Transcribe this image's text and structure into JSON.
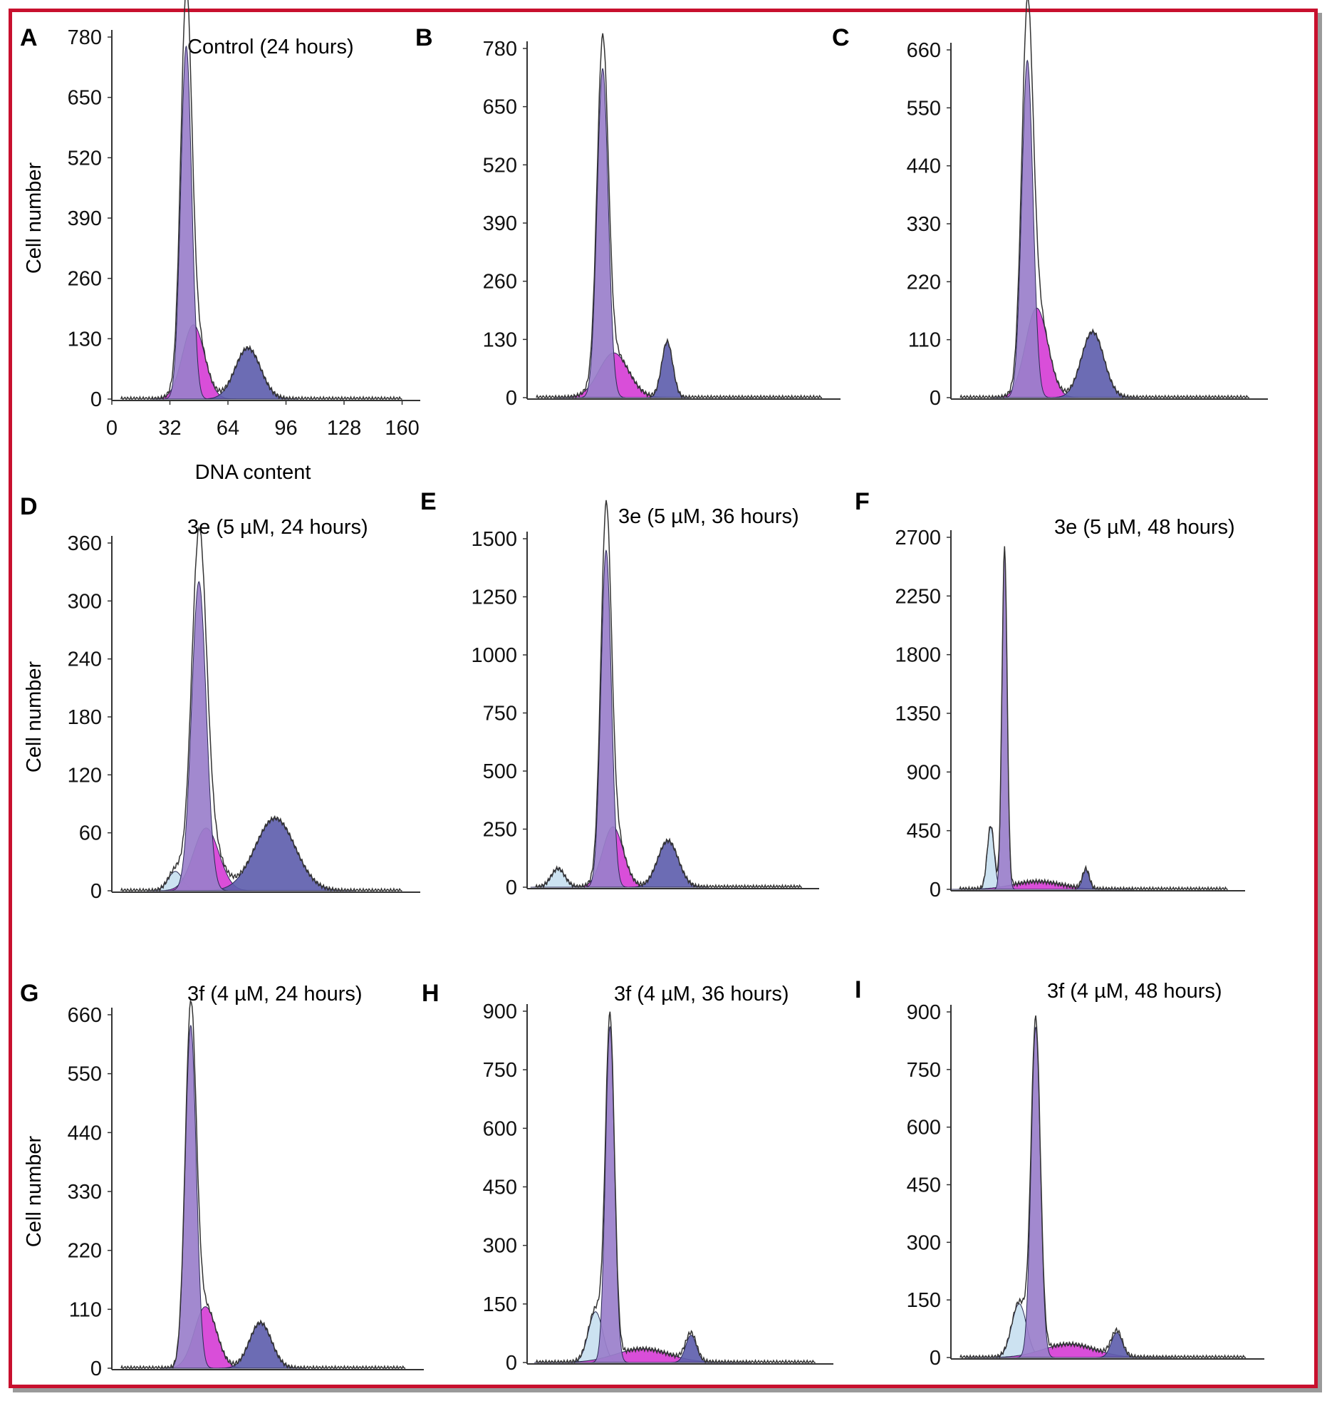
{
  "colors": {
    "border": "#c8102e",
    "sub_g1": "#c8dff0",
    "g0_g1": "#9a7fcb",
    "s_phase": "#d63fd6",
    "g2_m": "#5f5fae",
    "outline": "#333333"
  },
  "chart_data": [
    {
      "type": "area",
      "panel": "A",
      "title": "Control (24 hours)",
      "ylabel": "Cell number",
      "xlabel": "DNA content",
      "yticks": [
        0,
        130,
        260,
        390,
        520,
        650,
        780
      ],
      "ylim": [
        0,
        780
      ],
      "xticks": [
        "0",
        "32",
        "64",
        "96",
        "128",
        "160"
      ],
      "xlim": [
        0,
        170
      ],
      "peaks": {
        "sub_g1": [
          0,
          35,
          3
        ],
        "g1": [
          760,
          41,
          3
        ],
        "s": [
          160,
          45,
          6
        ],
        "g2": [
          110,
          75,
          7
        ]
      }
    },
    {
      "type": "area",
      "panel": "B",
      "title": "",
      "yticks": [
        0,
        130,
        260,
        390,
        520,
        650,
        780
      ],
      "ylim": [
        0,
        780
      ],
      "peaks": {
        "sub_g1": [
          0,
          30,
          3
        ],
        "g1": [
          735,
          41,
          3
        ],
        "s": [
          100,
          47,
          8
        ],
        "g2": [
          125,
          76,
          3
        ]
      }
    },
    {
      "type": "area",
      "panel": "C",
      "title": "",
      "yticks": [
        0,
        110,
        220,
        330,
        440,
        550,
        660
      ],
      "ylim": [
        0,
        660
      ],
      "peaks": {
        "sub_g1": [
          0,
          30,
          3
        ],
        "g1": [
          640,
          41,
          3
        ],
        "s": [
          170,
          46,
          6
        ],
        "g2": [
          125,
          76,
          6
        ]
      }
    },
    {
      "type": "area",
      "panel": "D",
      "title": "3e (5 µM, 24 hours)",
      "ylabel": "Cell number",
      "yticks": [
        0,
        60,
        120,
        180,
        240,
        300,
        360
      ],
      "ylim": [
        0,
        360
      ],
      "peaks": {
        "sub_g1": [
          20,
          35,
          4
        ],
        "g1": [
          320,
          48,
          4
        ],
        "s": [
          65,
          52,
          7
        ],
        "g2": [
          75,
          90,
          11
        ]
      }
    },
    {
      "type": "area",
      "panel": "E",
      "title": "3e (5 µM, 36 hours)",
      "yticks": [
        0,
        250,
        500,
        750,
        1000,
        1250,
        1500
      ],
      "ylim": [
        0,
        1500
      ],
      "peaks": {
        "sub_g1": [
          80,
          18,
          4
        ],
        "g1": [
          1450,
          46,
          3
        ],
        "s": [
          260,
          50,
          6
        ],
        "g2": [
          200,
          82,
          6
        ]
      }
    },
    {
      "type": "area",
      "panel": "F",
      "title": "3e (5 µM, 48 hours)",
      "yticks": [
        0,
        450,
        900,
        1350,
        1800,
        2250,
        2700
      ],
      "ylim": [
        0,
        2700
      ],
      "peaks": {
        "sub_g1": [
          480,
          23,
          2
        ],
        "g1": [
          2600,
          31,
          1.5
        ],
        "s": [
          60,
          50,
          14
        ],
        "g2": [
          150,
          78,
          2
        ]
      }
    },
    {
      "type": "area",
      "panel": "G",
      "title": "3f (4 µM, 24 hours)",
      "ylabel": "Cell number",
      "yticks": [
        0,
        110,
        220,
        330,
        440,
        550,
        660
      ],
      "ylim": [
        0,
        660
      ],
      "peaks": {
        "sub_g1": [
          0,
          30,
          3
        ],
        "g1": [
          640,
          43,
          3
        ],
        "s": [
          115,
          51,
          6
        ],
        "g2": [
          85,
          81,
          6
        ]
      }
    },
    {
      "type": "area",
      "panel": "H",
      "title": "3f (4 µM, 36 hours)",
      "yticks": [
        0,
        150,
        300,
        450,
        600,
        750,
        900
      ],
      "ylim": [
        0,
        900
      ],
      "peaks": {
        "sub_g1": [
          130,
          38,
          4
        ],
        "g1": [
          860,
          46,
          2.5
        ],
        "s": [
          35,
          64,
          15
        ],
        "g2": [
          70,
          91,
          3
        ]
      }
    },
    {
      "type": "area",
      "panel": "I",
      "title": "3f (4 µM, 48 hours)",
      "yticks": [
        0,
        150,
        300,
        450,
        600,
        750,
        900
      ],
      "ylim": [
        0,
        900
      ],
      "peaks": {
        "sub_g1": [
          140,
          37,
          4
        ],
        "g1": [
          860,
          46,
          2.5
        ],
        "s": [
          35,
          64,
          14
        ],
        "g2": [
          65,
          90,
          3
        ]
      }
    }
  ]
}
